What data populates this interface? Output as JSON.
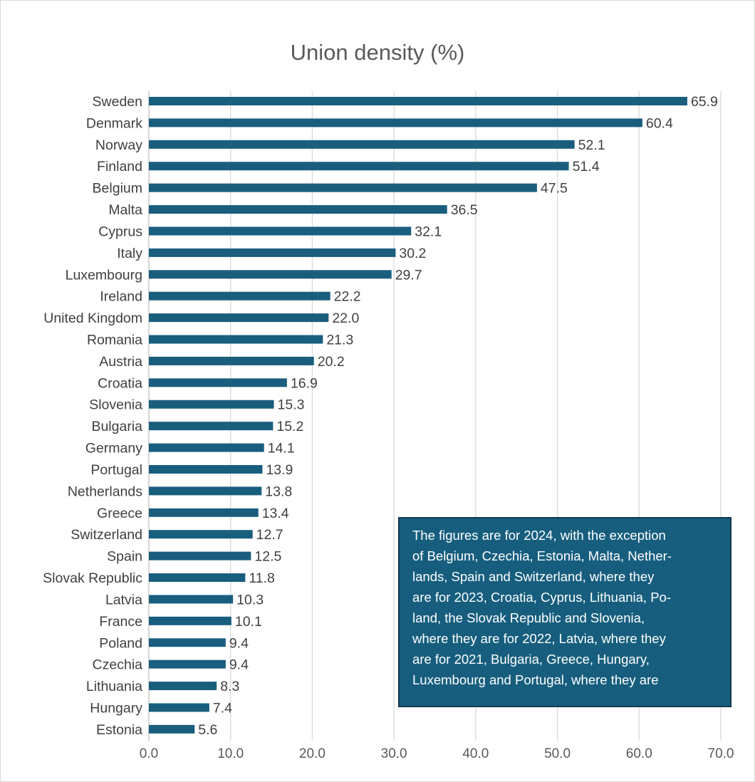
{
  "chart_data": {
    "type": "bar",
    "orientation": "horizontal",
    "title": "Union density (%)",
    "xlabel": "",
    "ylabel": "",
    "xlim": [
      0,
      70
    ],
    "xticks": [
      "0.0",
      "10.0",
      "20.0",
      "30.0",
      "40.0",
      "50.0",
      "60.0",
      "70.0"
    ],
    "grid": true,
    "categories": [
      "Sweden",
      "Denmark",
      "Norway",
      "Finland",
      "Belgium",
      "Malta",
      "Cyprus",
      "Italy",
      "Luxembourg",
      "Ireland",
      "United Kingdom",
      "Romania",
      "Austria",
      "Croatia",
      "Slovenia",
      "Bulgaria",
      "Germany",
      "Portugal",
      "Netherlands",
      "Greece",
      "Switzerland",
      "Spain",
      "Slovak Republic",
      "Latvia",
      "France",
      "Poland",
      "Czechia",
      "Lithuania",
      "Hungary",
      "Estonia"
    ],
    "values": [
      65.9,
      60.4,
      52.1,
      51.4,
      47.5,
      36.5,
      32.1,
      30.2,
      29.7,
      22.2,
      22.0,
      21.3,
      20.2,
      16.9,
      15.3,
      15.2,
      14.1,
      13.9,
      13.8,
      13.4,
      12.7,
      12.5,
      11.8,
      10.3,
      10.1,
      9.4,
      9.4,
      8.3,
      7.4,
      5.6
    ],
    "data_labels": [
      "65.9",
      "60.4",
      "52.1",
      "51.4",
      "47.5",
      "36.5",
      "32.1",
      "30.2",
      "29.7",
      "22.2",
      "22.0",
      "21.3",
      "20.2",
      "16.9",
      "15.3",
      "15.2",
      "14.1",
      "13.9",
      "13.8",
      "13.4",
      "12.7",
      "12.5",
      "11.8",
      "10.3",
      "10.1",
      "9.4",
      "9.4",
      "8.3",
      "7.4",
      "5.6"
    ],
    "bar_color": "#1a5e7e",
    "annotation": {
      "lines": [
        "The figures are for 2024, with the exception",
        "of Belgium, Czechia, Estonia, Malta, Nether-",
        "lands, Spain and Switzerland, where they",
        "are for 2023, Croatia, Cyprus, Lithuania, Po-",
        "land, the Slovak Republic and Slovenia,",
        "where they are for 2022, Latvia, where they",
        "are for 2021, Bulgaria, Greece, Hungary,",
        "Luxembourg and Portugal, where they are"
      ],
      "background": "#175e7e"
    }
  }
}
